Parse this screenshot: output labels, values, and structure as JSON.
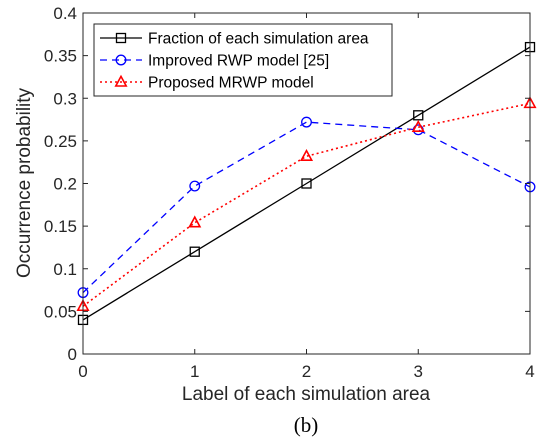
{
  "chart_data": {
    "type": "line",
    "xlabel": "Label of each simulation area",
    "ylabel": "Occurrence probability",
    "caption": "(b)",
    "x": [
      0,
      1,
      2,
      3,
      4
    ],
    "xlim": [
      0,
      4
    ],
    "ylim": [
      0,
      0.4
    ],
    "xticks": [
      "0",
      "1",
      "2",
      "3",
      "4"
    ],
    "yticks": [
      "0",
      "0.05",
      "0.1",
      "0.15",
      "0.2",
      "0.25",
      "0.3",
      "0.35",
      "0.4"
    ],
    "grid": false,
    "legend_position": "top-left",
    "series": [
      {
        "name": "Fraction of each simulation area",
        "values": [
          0.04,
          0.12,
          0.2,
          0.28,
          0.36
        ],
        "color": "#000000",
        "dash": "solid",
        "marker": "square"
      },
      {
        "name": "Improved RWP model [25]",
        "values": [
          0.072,
          0.197,
          0.272,
          0.263,
          0.196
        ],
        "color": "#0000ff",
        "dash": "dashed",
        "marker": "circle"
      },
      {
        "name": "Proposed MRWP model",
        "values": [
          0.056,
          0.154,
          0.232,
          0.266,
          0.294
        ],
        "color": "#ff0000",
        "dash": "dotted",
        "marker": "triangle"
      }
    ]
  }
}
